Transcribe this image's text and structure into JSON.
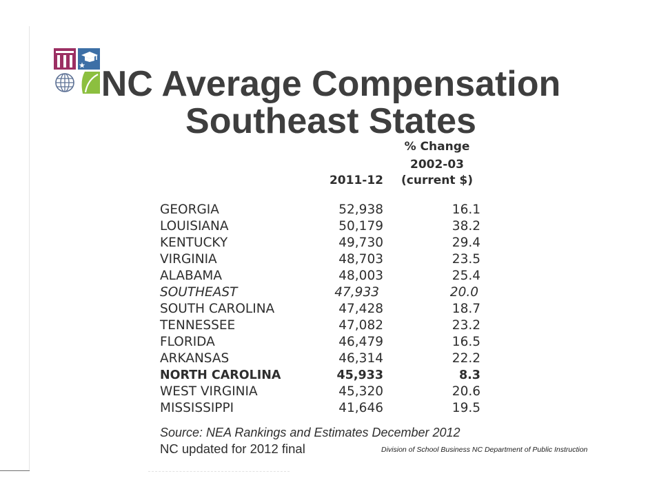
{
  "logo": {
    "icons": [
      "building-columns-icon",
      "graduation-cap-icon",
      "globe-icon",
      "leaf-icon"
    ],
    "colors": {
      "magenta": "#9c2f63",
      "blue": "#3d6fa6",
      "slate": "#5c7094",
      "green": "#8cbf3f"
    }
  },
  "title": {
    "line1": "NC Average Compensation",
    "line2": "Southeast States"
  },
  "table": {
    "header": {
      "compensation": "2011-12",
      "change_line1": "% Change",
      "change_line2": "2002-03",
      "change_line3": "(current $)"
    },
    "rows": [
      {
        "state": "GEORGIA",
        "compensation": "52,938",
        "change": "16.1"
      },
      {
        "state": "LOUISIANA",
        "compensation": "50,179",
        "change": "38.2"
      },
      {
        "state": "KENTUCKY",
        "compensation": "49,730",
        "change": "29.4"
      },
      {
        "state": "VIRGINIA",
        "compensation": "48,703",
        "change": "23.5"
      },
      {
        "state": "ALABAMA",
        "compensation": "48,003",
        "change": "25.4"
      },
      {
        "state": "SOUTHEAST",
        "compensation": "47,933",
        "change": "20.0"
      },
      {
        "state": "SOUTH CAROLINA",
        "compensation": "47,428",
        "change": "18.7"
      },
      {
        "state": "TENNESSEE",
        "compensation": "47,082",
        "change": "23.2"
      },
      {
        "state": "FLORIDA",
        "compensation": "46,479",
        "change": "16.5"
      },
      {
        "state": "ARKANSAS",
        "compensation": "46,314",
        "change": "22.2"
      },
      {
        "state": "NORTH CAROLINA",
        "compensation": "45,933",
        "change": "8.3"
      },
      {
        "state": "WEST VIRGINIA",
        "compensation": "45,320",
        "change": "20.6"
      },
      {
        "state": "MISSISSIPPI",
        "compensation": "41,646",
        "change": "19.5"
      }
    ]
  },
  "source": "Source: NEA Rankings and Estimates December 2012",
  "note": "NC updated for 2012 final",
  "footer": "Division of School Business NC Department of Public Instruction",
  "colors": {
    "title": "#3e3e3e",
    "text": "#2e2e2e"
  }
}
